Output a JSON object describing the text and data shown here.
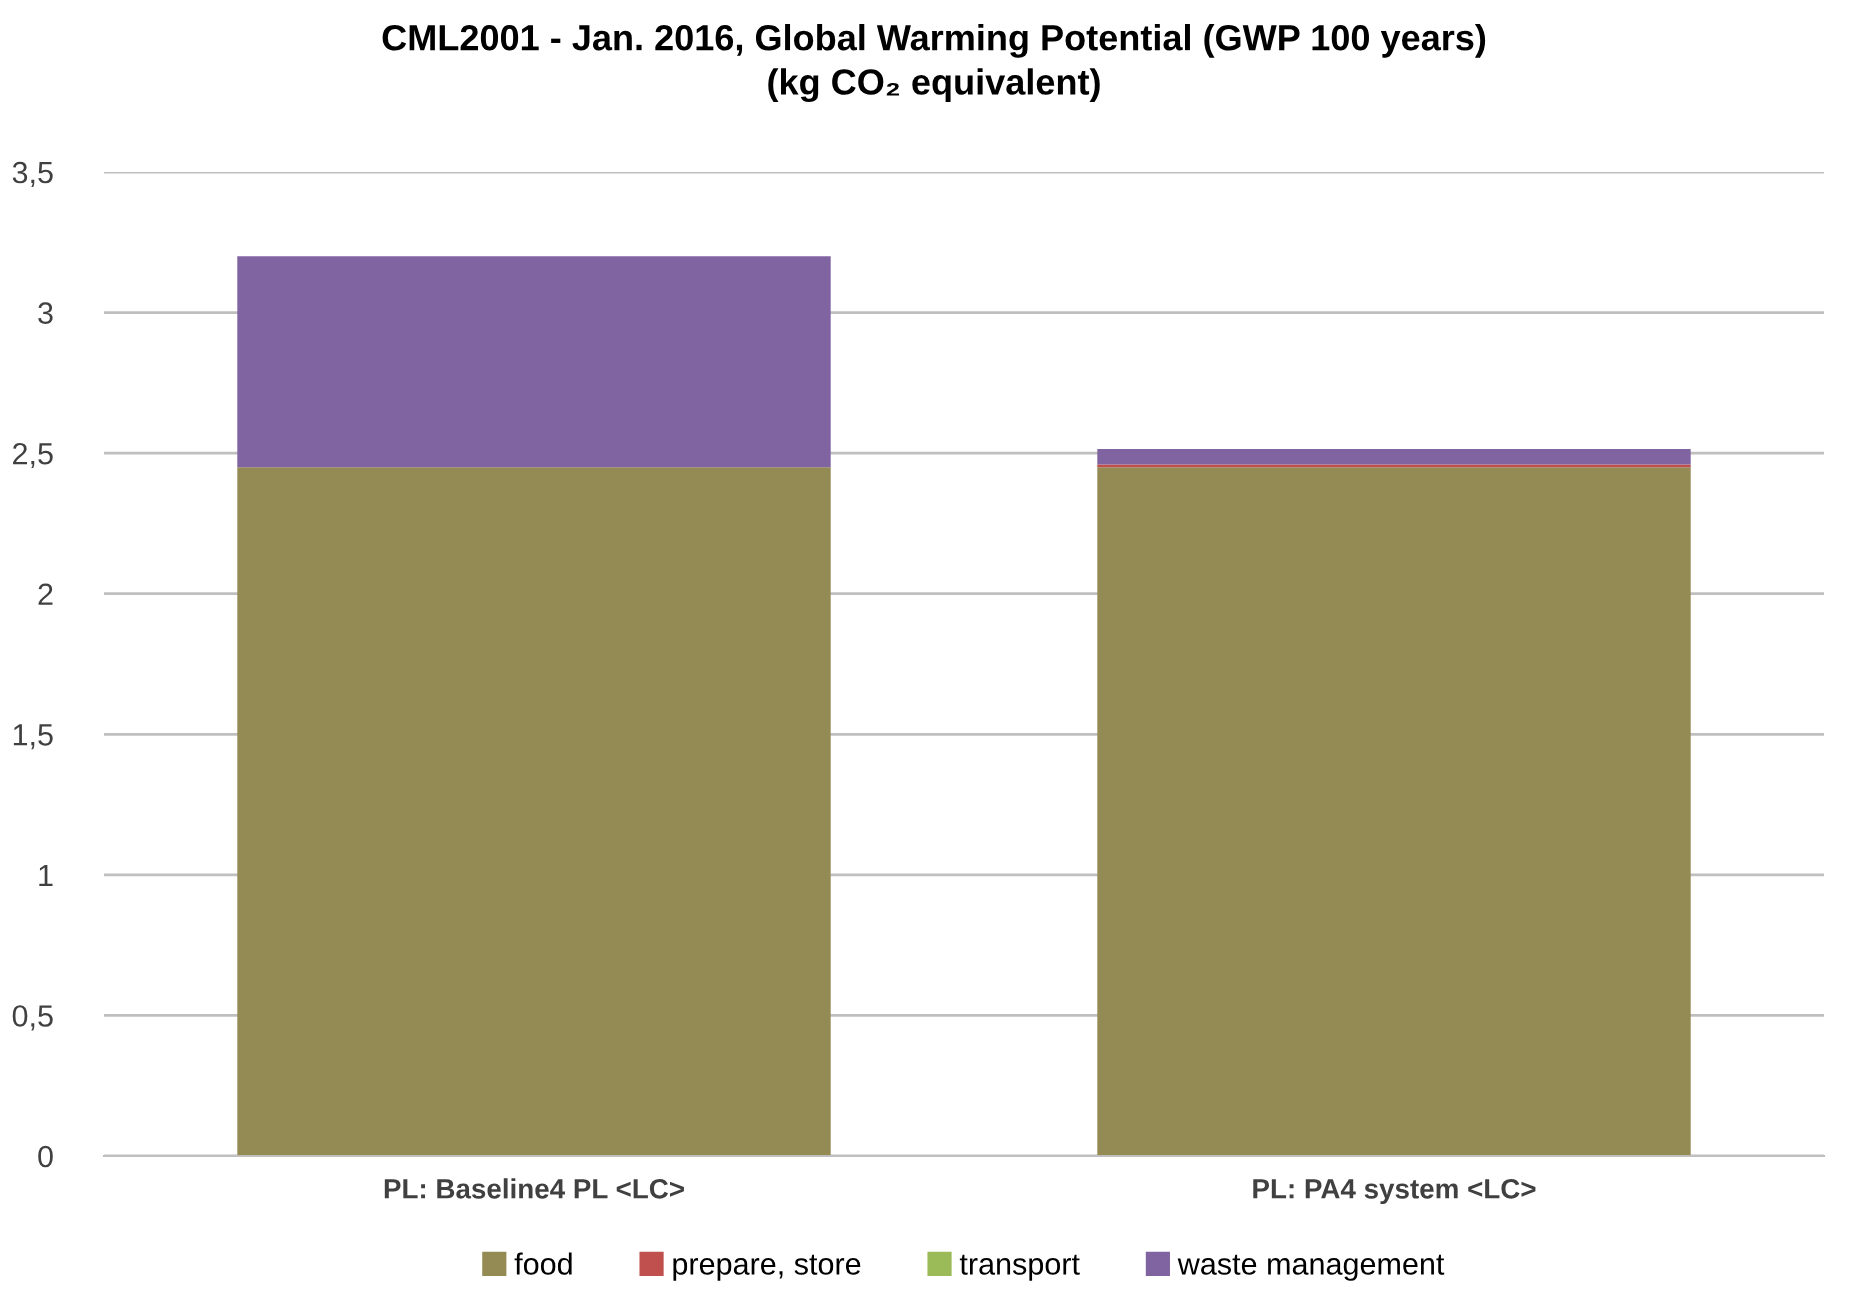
{
  "chart_data": {
    "type": "bar",
    "stacked": true,
    "title": "CML2001 - Jan. 2016, Global Warming Potential (GWP 100 years)\n(kg CO₂ equivalent)",
    "categories": [
      "PL: Baseline4 PL <LC>",
      "PL: PA4 system <LC>"
    ],
    "series": [
      {
        "name": "food",
        "color": "#948a54",
        "values": [
          2.45,
          2.45
        ]
      },
      {
        "name": "prepare, store",
        "color": "#c0504d",
        "values": [
          0,
          0.01
        ]
      },
      {
        "name": "transport",
        "color": "#9bbb59",
        "values": [
          0,
          0
        ]
      },
      {
        "name": "waste management",
        "color": "#8064a2",
        "values": [
          0.75,
          0.055
        ]
      }
    ],
    "ylim": [
      0,
      3.5
    ],
    "yticks": [
      0,
      {
        "value": 0.5,
        "label": "0,5"
      },
      1,
      {
        "value": 1.5,
        "label": "1,5"
      },
      2,
      {
        "value": 2.5,
        "label": "2,5"
      },
      3,
      {
        "value": 3.5,
        "label": "3,5"
      }
    ],
    "grid": "y",
    "legend": "bottom"
  }
}
